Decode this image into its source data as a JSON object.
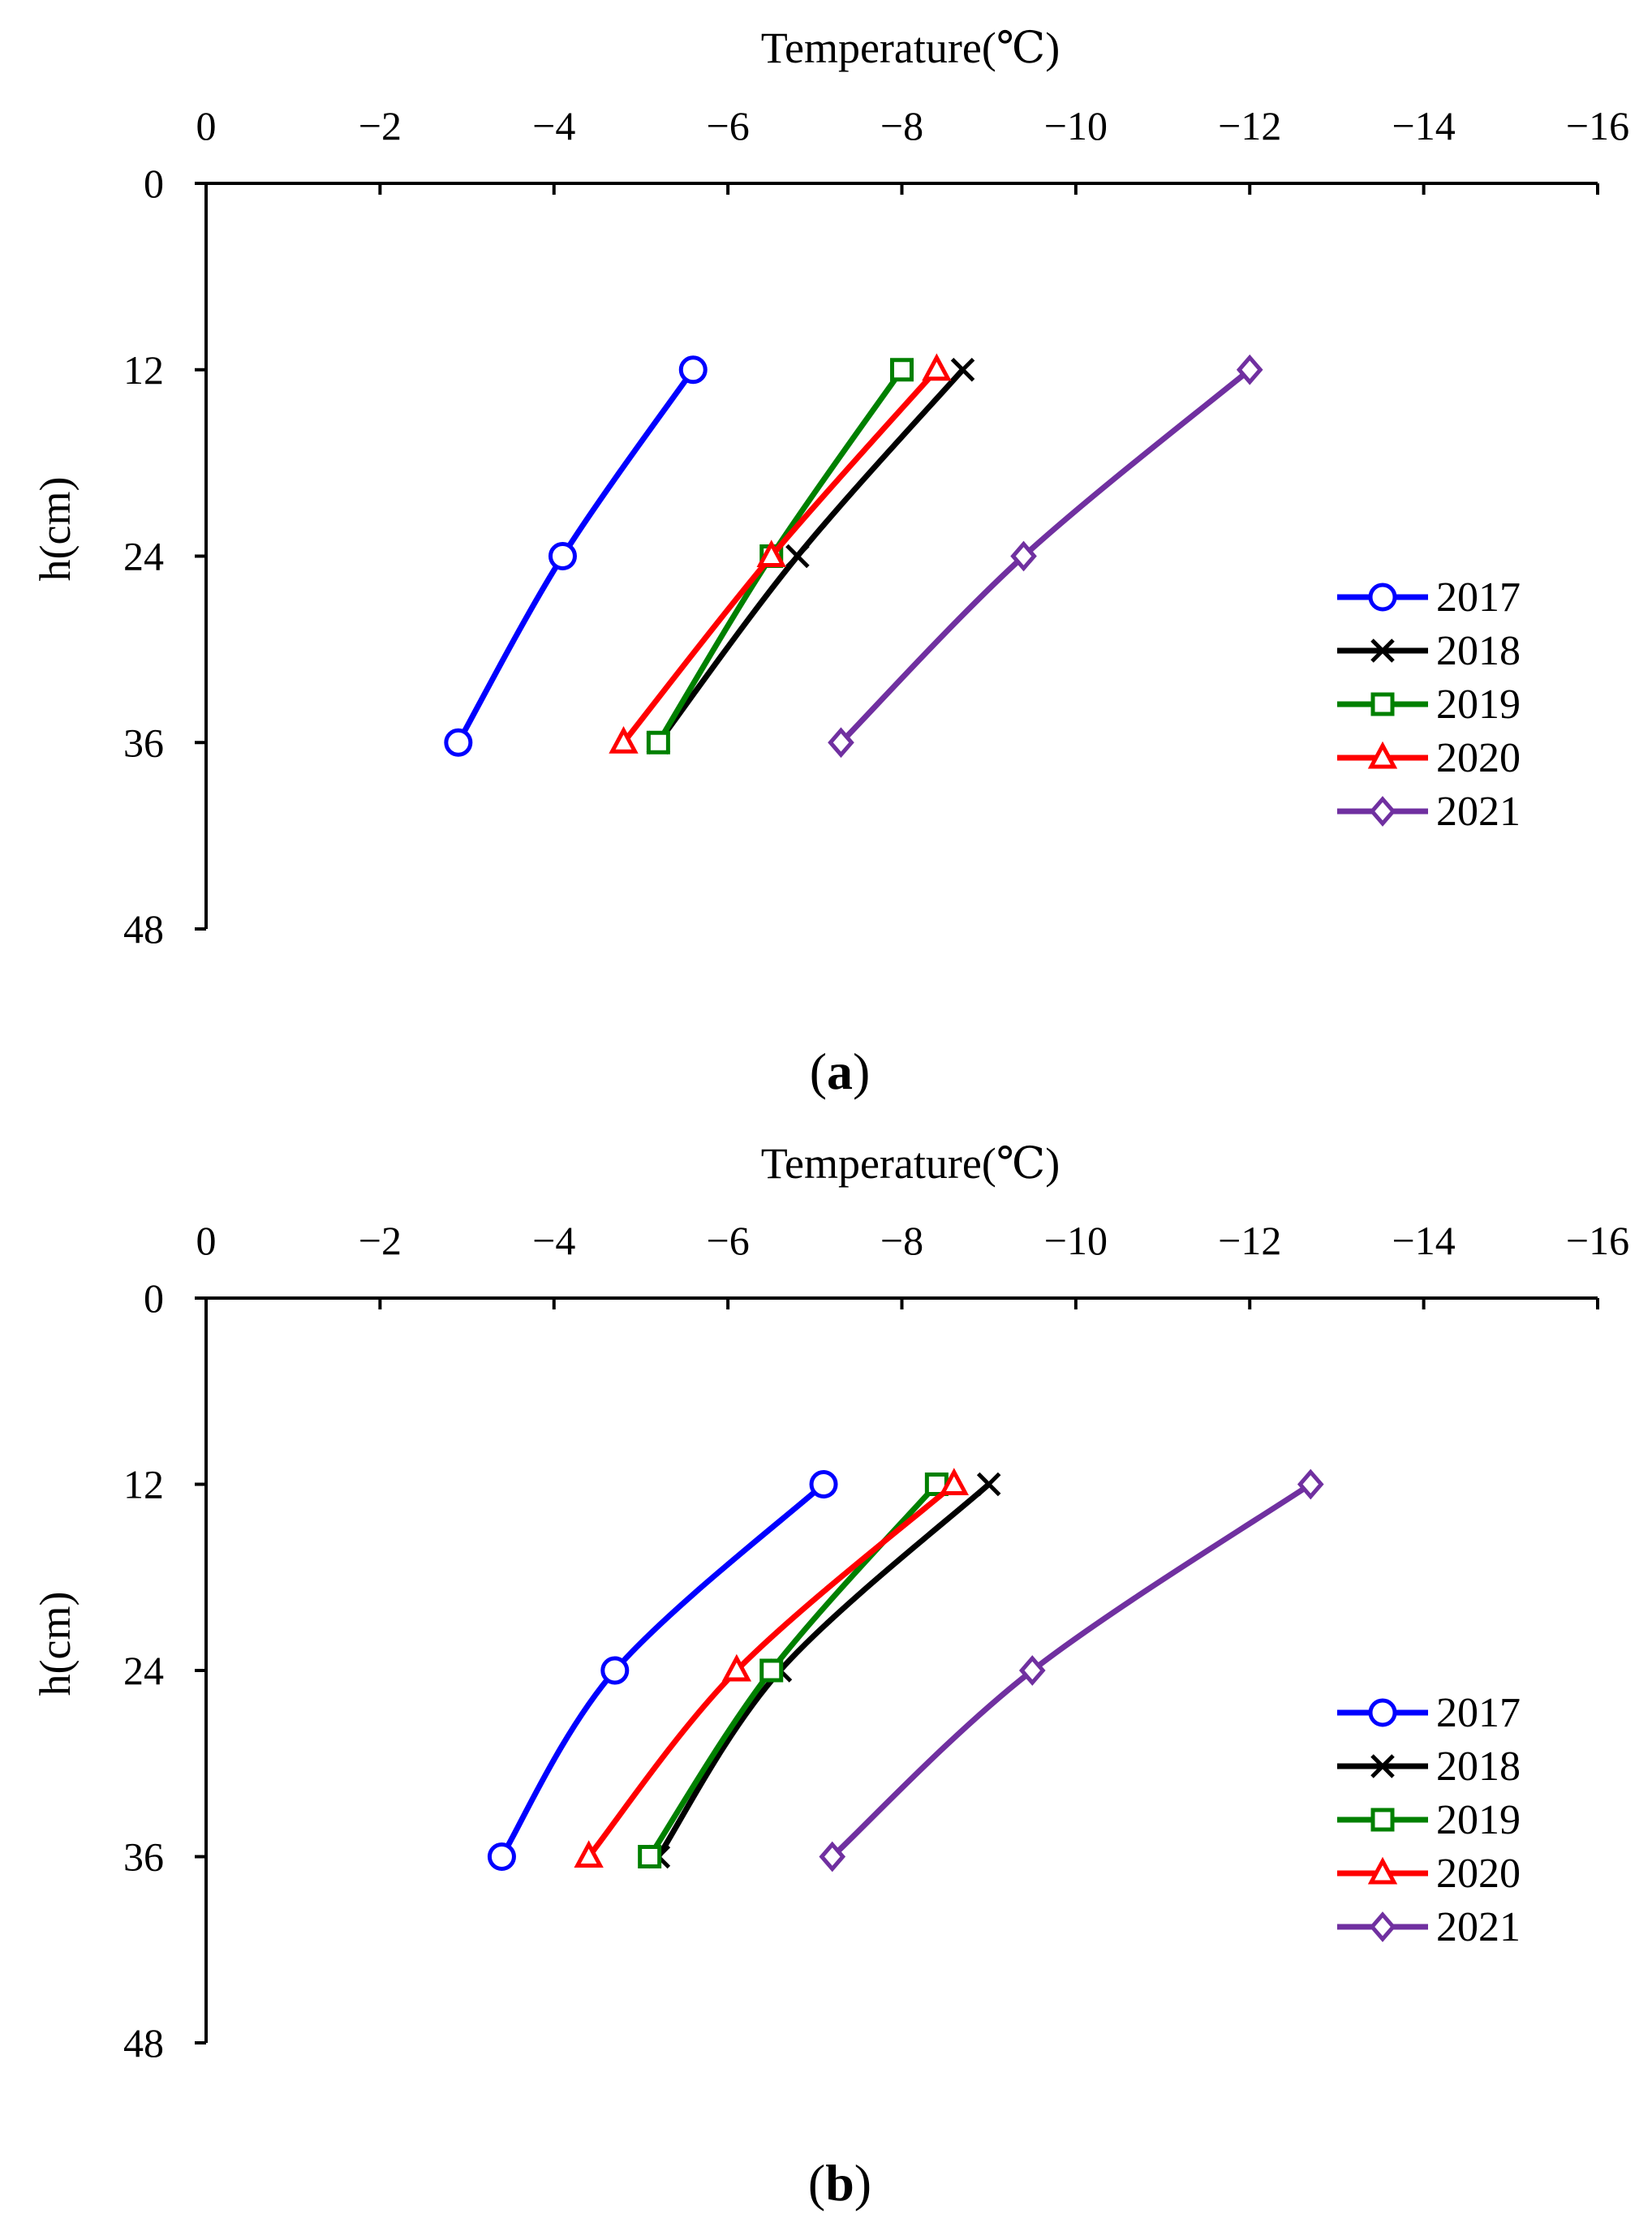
{
  "chart_data": [
    {
      "type": "line",
      "panel_label": "a",
      "xlabel": "Temperature(℃)",
      "ylabel": "h(cm)",
      "xlim": [
        0,
        -16
      ],
      "ylim": [
        0,
        48
      ],
      "x_ticks": [
        "0",
        "−2",
        "−4",
        "−6",
        "−8",
        "−10",
        "−12",
        "−14",
        "−16"
      ],
      "y_ticks": [
        "0",
        "12",
        "24",
        "36",
        "48"
      ],
      "x_tick_values": [
        0,
        -2,
        -4,
        -6,
        -8,
        -10,
        -12,
        -14,
        -16
      ],
      "y_tick_values": [
        0,
        12,
        24,
        36,
        48
      ],
      "legend_position": "right",
      "series": [
        {
          "name": "2017",
          "color": "#0000ff",
          "marker": "circle",
          "temps": [
            -5.6,
            -4.1,
            -2.9
          ],
          "depths": [
            12,
            24,
            36
          ]
        },
        {
          "name": "2018",
          "color": "#000000",
          "marker": "x",
          "temps": [
            -8.7,
            -6.8,
            -5.2
          ],
          "depths": [
            12,
            24,
            36
          ]
        },
        {
          "name": "2019",
          "color": "#008000",
          "marker": "square",
          "temps": [
            -8.0,
            -6.5,
            -5.2
          ],
          "depths": [
            12,
            24,
            36
          ]
        },
        {
          "name": "2020",
          "color": "#ff0000",
          "marker": "triangle",
          "temps": [
            -8.4,
            -6.5,
            -4.8
          ],
          "depths": [
            12,
            24,
            36
          ]
        },
        {
          "name": "2021",
          "color": "#7030a0",
          "marker": "diamond",
          "temps": [
            -12.0,
            -9.4,
            -7.3
          ],
          "depths": [
            12,
            24,
            36
          ]
        }
      ]
    },
    {
      "type": "line",
      "panel_label": "b",
      "xlabel": "Temperature(℃)",
      "ylabel": "h(cm)",
      "xlim": [
        0,
        -16
      ],
      "ylim": [
        0,
        48
      ],
      "x_ticks": [
        "0",
        "−2",
        "−4",
        "−6",
        "−8",
        "−10",
        "−12",
        "−14",
        "−16"
      ],
      "y_ticks": [
        "0",
        "12",
        "24",
        "36",
        "48"
      ],
      "x_tick_values": [
        0,
        -2,
        -4,
        -6,
        -8,
        -10,
        -12,
        -14,
        -16
      ],
      "y_tick_values": [
        0,
        12,
        24,
        36,
        48
      ],
      "legend_position": "right",
      "series": [
        {
          "name": "2017",
          "color": "#0000ff",
          "marker": "circle",
          "temps": [
            -7.1,
            -4.7,
            -3.4
          ],
          "depths": [
            12,
            24,
            36
          ]
        },
        {
          "name": "2018",
          "color": "#000000",
          "marker": "x",
          "temps": [
            -9.0,
            -6.6,
            -5.2
          ],
          "depths": [
            12,
            24,
            36
          ]
        },
        {
          "name": "2019",
          "color": "#008000",
          "marker": "square",
          "temps": [
            -8.4,
            -6.5,
            -5.1
          ],
          "depths": [
            12,
            24,
            36
          ]
        },
        {
          "name": "2020",
          "color": "#ff0000",
          "marker": "triangle",
          "temps": [
            -8.6,
            -6.1,
            -4.4
          ],
          "depths": [
            12,
            24,
            36
          ]
        },
        {
          "name": "2021",
          "color": "#7030a0",
          "marker": "diamond",
          "temps": [
            -12.7,
            -9.5,
            -7.2
          ],
          "depths": [
            12,
            24,
            36
          ]
        }
      ]
    }
  ]
}
